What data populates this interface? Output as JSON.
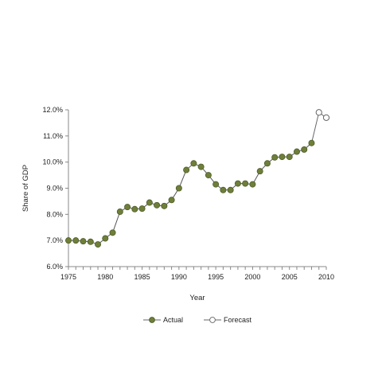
{
  "chart_data": {
    "type": "line",
    "title": "",
    "xlabel": "Year",
    "ylabel": "Share of GDP",
    "xlim": [
      1975,
      2010
    ],
    "ylim": [
      6.0,
      12.0
    ],
    "x_ticks": [
      "1975",
      "1980",
      "1985",
      "1990",
      "1995",
      "2000",
      "2005",
      "2010"
    ],
    "x_tick_values": [
      1975,
      1980,
      1985,
      1990,
      1995,
      2000,
      2005,
      2010
    ],
    "y_ticks": [
      "6.0%",
      "7.0%",
      "8.0%",
      "9.0%",
      "10.0%",
      "11.0%",
      "12.0%"
    ],
    "y_tick_values": [
      6,
      7,
      8,
      9,
      10,
      11,
      12
    ],
    "grid": false,
    "legend_position": "bottom",
    "series": [
      {
        "name": "Actual",
        "color": "#6e7f3a",
        "marker": "filled-circle",
        "points": [
          [
            1975,
            7.0
          ],
          [
            1976,
            7.0
          ],
          [
            1977,
            6.97
          ],
          [
            1978,
            6.95
          ],
          [
            1979,
            6.85
          ],
          [
            1980,
            7.08
          ],
          [
            1981,
            7.3
          ],
          [
            1982,
            8.1
          ],
          [
            1983,
            8.28
          ],
          [
            1984,
            8.2
          ],
          [
            1985,
            8.22
          ],
          [
            1986,
            8.45
          ],
          [
            1987,
            8.35
          ],
          [
            1988,
            8.32
          ],
          [
            1989,
            8.55
          ],
          [
            1990,
            9.0
          ],
          [
            1991,
            9.7
          ],
          [
            1992,
            9.95
          ],
          [
            1993,
            9.82
          ],
          [
            1994,
            9.5
          ],
          [
            1995,
            9.15
          ],
          [
            1996,
            8.93
          ],
          [
            1997,
            8.93
          ],
          [
            1998,
            9.18
          ],
          [
            1999,
            9.18
          ],
          [
            2000,
            9.15
          ],
          [
            2001,
            9.65
          ],
          [
            2002,
            9.95
          ],
          [
            2003,
            10.18
          ],
          [
            2004,
            10.2
          ],
          [
            2005,
            10.2
          ],
          [
            2006,
            10.4
          ],
          [
            2007,
            10.48
          ],
          [
            2008,
            10.73
          ]
        ]
      },
      {
        "name": "Forecast",
        "color": "#888888",
        "marker": "open-circle",
        "points": [
          [
            2009,
            11.9
          ],
          [
            2010,
            11.7
          ]
        ]
      }
    ]
  }
}
